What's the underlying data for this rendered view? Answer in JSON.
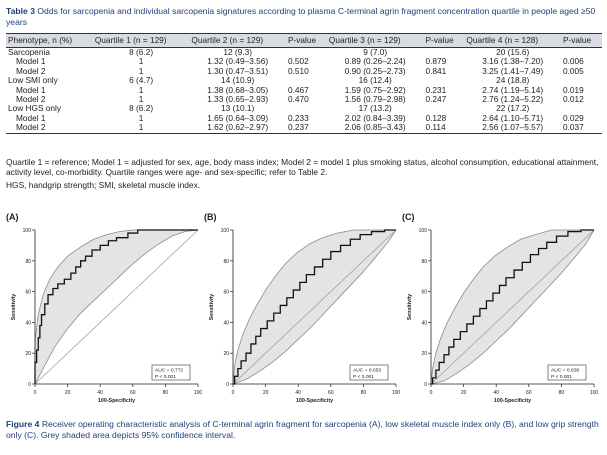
{
  "table3": {
    "caption_label": "Table 3",
    "caption_text": " Odds for sarcopenia and individual sarcopenia signatures according to plasma C-terminal agrin fragment concentration quartile in people aged ≥50 years",
    "headers": [
      "Phenotype, n (%)",
      "Quartile 1 (n = 129)",
      "Quartile 2 (n = 129)",
      "P-value",
      "Quartile 3 (n = 129)",
      "P-value",
      "Quartile 4 (n = 128)",
      "P-value"
    ],
    "rows": [
      [
        "Sarcopenia",
        "8 (6.2)",
        "12 (9.3)",
        "",
        "9 (7.0)",
        "",
        "20 (15.6)",
        ""
      ],
      [
        "Model 1",
        "1",
        "1.32 (0.49–3.56)",
        "0.502",
        "0.89 (0.26–2.24)",
        "0.879",
        "3.16 (1.38–7.20)",
        "0.006"
      ],
      [
        "Model 2",
        "1",
        "1.30 (0.47–3.51)",
        "0.510",
        "0.90 (0.25–2.73)",
        "0.841",
        "3.25 (1.41–7.49)",
        "0.005"
      ],
      [
        "Low SMI only",
        "6 (4.7)",
        "14 (10.9)",
        "",
        "16 (12.4)",
        "",
        "24 (18.8)",
        ""
      ],
      [
        "Model 1",
        "1",
        "1.38 (0.68–3.05)",
        "0.467",
        "1.59 (0.75–2.92)",
        "0.231",
        "2.74 (1.19–5.14)",
        "0.019"
      ],
      [
        "Model 2",
        "1",
        "1.33 (0.65–2.93)",
        "0.470",
        "1.56 (0.79–2.98)",
        "0.247",
        "2.76 (1.24–5.22)",
        "0.012"
      ],
      [
        "Low HGS only",
        "8 (6.2)",
        "13 (10.1)",
        "",
        "17 (13.2)",
        "",
        "22 (17.2)",
        ""
      ],
      [
        "Model 1",
        "1",
        "1.65 (0.64–3.09)",
        "0.233",
        "2.02 (0.84–3.39)",
        "0.128",
        "2.64 (1.10–5.71)",
        "0.029"
      ],
      [
        "Model 2",
        "1",
        "1.62 (0.62–2.97)",
        "0.237",
        "2.06 (0.85–3.43)",
        "0.114",
        "2.56 (1.07–5.57)",
        "0.037"
      ]
    ],
    "footnote1": "Quartile 1 = reference; Model 1 = adjusted for sex, age, body mass index; Model 2 = model 1 plus smoking status, alcohol consumption, educational attainment, activity level, co-morbidity. Quartile ranges were age- and sex-specific; refer to Table 2.",
    "footnote2": "HGS, handgrip strength; SMI, skeletal muscle index."
  },
  "figure4": {
    "caption_label": "Figure 4",
    "caption_text": " Receiver operating characteristic analysis of C-terminal agrin fragment for sarcopenia (A), low skeletal muscle index only (B), and low grip strength only (C). Grey shaded area depicts 95% confidence interval."
  },
  "chart_data": [
    {
      "type": "line",
      "panel": "(A)",
      "xlabel": "100-Specificity",
      "ylabel": "Sensitivity",
      "xlim": [
        0,
        100
      ],
      "ylim": [
        0,
        100
      ],
      "xticks": [
        0,
        20,
        40,
        60,
        80,
        100
      ],
      "yticks": [
        0,
        20,
        40,
        60,
        80,
        100
      ],
      "auc_label": "AUC = 0.772",
      "p_label": "P < 0.001",
      "roc": [
        [
          0,
          0
        ],
        [
          0,
          14
        ],
        [
          1,
          22
        ],
        [
          2,
          30
        ],
        [
          3,
          38
        ],
        [
          4,
          45
        ],
        [
          6,
          52
        ],
        [
          8,
          58
        ],
        [
          11,
          62
        ],
        [
          14,
          65
        ],
        [
          18,
          68
        ],
        [
          22,
          72
        ],
        [
          25,
          76
        ],
        [
          28,
          80
        ],
        [
          31,
          83
        ],
        [
          35,
          87
        ],
        [
          40,
          90
        ],
        [
          45,
          93
        ],
        [
          50,
          95
        ],
        [
          57,
          98
        ],
        [
          63,
          100
        ],
        [
          100,
          100
        ]
      ],
      "ci_upper": [
        [
          0,
          0
        ],
        [
          0,
          28
        ],
        [
          2,
          45
        ],
        [
          5,
          58
        ],
        [
          9,
          68
        ],
        [
          14,
          76
        ],
        [
          20,
          83
        ],
        [
          28,
          89
        ],
        [
          36,
          94
        ],
        [
          44,
          97
        ],
        [
          52,
          99
        ],
        [
          60,
          100
        ],
        [
          100,
          100
        ]
      ],
      "ci_lower": [
        [
          0,
          0
        ],
        [
          5,
          10
        ],
        [
          12,
          24
        ],
        [
          20,
          36
        ],
        [
          28,
          46
        ],
        [
          36,
          54
        ],
        [
          44,
          62
        ],
        [
          52,
          70
        ],
        [
          60,
          78
        ],
        [
          68,
          85
        ],
        [
          76,
          91
        ],
        [
          84,
          96
        ],
        [
          92,
          99
        ],
        [
          100,
          100
        ]
      ]
    },
    {
      "type": "line",
      "panel": "(B)",
      "xlabel": "100-Specificity",
      "ylabel": "Sensitivity",
      "xlim": [
        0,
        100
      ],
      "ylim": [
        0,
        100
      ],
      "xticks": [
        0,
        20,
        40,
        60,
        80,
        100
      ],
      "yticks": [
        0,
        20,
        40,
        60,
        80,
        100
      ],
      "auc_label": "AUC = 0.653",
      "p_label": "P < 0.001",
      "roc": [
        [
          0,
          0
        ],
        [
          1,
          5
        ],
        [
          3,
          10
        ],
        [
          5,
          15
        ],
        [
          8,
          20
        ],
        [
          11,
          26
        ],
        [
          14,
          31
        ],
        [
          17,
          36
        ],
        [
          21,
          41
        ],
        [
          25,
          46
        ],
        [
          29,
          51
        ],
        [
          33,
          56
        ],
        [
          37,
          61
        ],
        [
          41,
          66
        ],
        [
          45,
          71
        ],
        [
          50,
          76
        ],
        [
          55,
          81
        ],
        [
          60,
          86
        ],
        [
          66,
          90
        ],
        [
          72,
          94
        ],
        [
          78,
          97
        ],
        [
          85,
          99
        ],
        [
          93,
          100
        ],
        [
          100,
          100
        ]
      ],
      "ci_upper": [
        [
          0,
          0
        ],
        [
          1,
          12
        ],
        [
          3,
          22
        ],
        [
          6,
          32
        ],
        [
          10,
          42
        ],
        [
          15,
          52
        ],
        [
          20,
          61
        ],
        [
          26,
          70
        ],
        [
          32,
          78
        ],
        [
          39,
          85
        ],
        [
          47,
          91
        ],
        [
          55,
          95
        ],
        [
          64,
          98
        ],
        [
          74,
          100
        ],
        [
          100,
          100
        ]
      ],
      "ci_lower": [
        [
          0,
          0
        ],
        [
          8,
          3
        ],
        [
          16,
          8
        ],
        [
          24,
          14
        ],
        [
          32,
          21
        ],
        [
          40,
          29
        ],
        [
          48,
          37
        ],
        [
          56,
          46
        ],
        [
          64,
          55
        ],
        [
          72,
          64
        ],
        [
          80,
          73
        ],
        [
          88,
          83
        ],
        [
          95,
          92
        ],
        [
          100,
          100
        ]
      ]
    },
    {
      "type": "line",
      "panel": "(C)",
      "xlabel": "100-Specificity",
      "ylabel": "Sensitivity",
      "xlim": [
        0,
        100
      ],
      "ylim": [
        0,
        100
      ],
      "xticks": [
        0,
        20,
        40,
        60,
        80,
        100
      ],
      "yticks": [
        0,
        20,
        40,
        60,
        80,
        100
      ],
      "auc_label": "AUC = 0.638",
      "p_label": "P < 0.001",
      "roc": [
        [
          0,
          0
        ],
        [
          1,
          4
        ],
        [
          3,
          9
        ],
        [
          5,
          14
        ],
        [
          8,
          19
        ],
        [
          11,
          24
        ],
        [
          14,
          29
        ],
        [
          18,
          34
        ],
        [
          22,
          39
        ],
        [
          26,
          44
        ],
        [
          30,
          49
        ],
        [
          34,
          54
        ],
        [
          38,
          59
        ],
        [
          42,
          64
        ],
        [
          46,
          69
        ],
        [
          51,
          74
        ],
        [
          56,
          79
        ],
        [
          61,
          84
        ],
        [
          66,
          88
        ],
        [
          71,
          92
        ],
        [
          77,
          96
        ],
        [
          84,
          99
        ],
        [
          92,
          100
        ],
        [
          100,
          100
        ]
      ],
      "ci_upper": [
        [
          0,
          0
        ],
        [
          1,
          10
        ],
        [
          3,
          20
        ],
        [
          6,
          30
        ],
        [
          10,
          40
        ],
        [
          15,
          50
        ],
        [
          20,
          59
        ],
        [
          26,
          68
        ],
        [
          32,
          76
        ],
        [
          39,
          83
        ],
        [
          47,
          89
        ],
        [
          55,
          94
        ],
        [
          64,
          97
        ],
        [
          74,
          100
        ],
        [
          100,
          100
        ]
      ],
      "ci_lower": [
        [
          0,
          0
        ],
        [
          8,
          2
        ],
        [
          16,
          7
        ],
        [
          24,
          13
        ],
        [
          32,
          20
        ],
        [
          40,
          28
        ],
        [
          48,
          36
        ],
        [
          56,
          45
        ],
        [
          64,
          54
        ],
        [
          72,
          63
        ],
        [
          80,
          72
        ],
        [
          88,
          82
        ],
        [
          95,
          91
        ],
        [
          100,
          100
        ]
      ]
    }
  ]
}
